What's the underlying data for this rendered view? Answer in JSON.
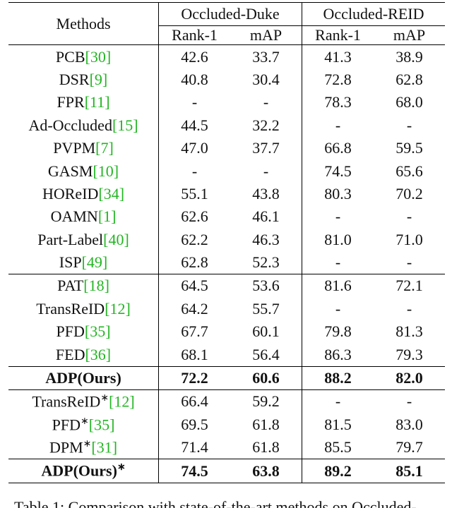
{
  "table": {
    "header": {
      "methods": "Methods",
      "datasets": [
        "Occluded-Duke",
        "Occluded-REID"
      ],
      "metrics": [
        "Rank-1",
        "mAP",
        "Rank-1",
        "mAP"
      ]
    },
    "groups": [
      {
        "bold": false,
        "rows": [
          {
            "method": "PCB",
            "ref": "[30]",
            "cells": [
              "42.6",
              "33.7",
              "41.3",
              "38.9"
            ]
          },
          {
            "method": "DSR",
            "ref": "[9]",
            "cells": [
              "40.8",
              "30.4",
              "72.8",
              "62.8"
            ]
          },
          {
            "method": "FPR",
            "ref": "[11]",
            "cells": [
              "-",
              "-",
              "78.3",
              "68.0"
            ]
          },
          {
            "method": "Ad-Occluded",
            "ref": "[15]",
            "cells": [
              "44.5",
              "32.2",
              "-",
              "-"
            ]
          },
          {
            "method": "PVPM",
            "ref": "[7]",
            "cells": [
              "47.0",
              "37.7",
              "66.8",
              "59.5"
            ]
          },
          {
            "method": "GASM",
            "ref": "[10]",
            "cells": [
              "-",
              "-",
              "74.5",
              "65.6"
            ]
          },
          {
            "method": "HOReID",
            "ref": "[34]",
            "cells": [
              "55.1",
              "43.8",
              "80.3",
              "70.2"
            ]
          },
          {
            "method": "OAMN",
            "ref": "[1]",
            "cells": [
              "62.6",
              "46.1",
              "-",
              "-"
            ]
          },
          {
            "method": "Part-Label",
            "ref": "[40]",
            "cells": [
              "62.2",
              "46.3",
              "81.0",
              "71.0"
            ]
          },
          {
            "method": "ISP",
            "ref": "[49]",
            "cells": [
              "62.8",
              "52.3",
              "-",
              "-"
            ]
          }
        ]
      },
      {
        "bold": false,
        "rows": [
          {
            "method": "PAT",
            "ref": "[18]",
            "cells": [
              "64.5",
              "53.6",
              "81.6",
              "72.1"
            ]
          },
          {
            "method": "TransReID",
            "ref": "[12]",
            "cells": [
              "64.2",
              "55.7",
              "-",
              "-"
            ]
          },
          {
            "method": "PFD",
            "ref": "[35]",
            "cells": [
              "67.7",
              "60.1",
              "79.8",
              "81.3"
            ]
          },
          {
            "method": "FED",
            "ref": "[36]",
            "cells": [
              "68.1",
              "56.4",
              "86.3",
              "79.3"
            ]
          }
        ]
      },
      {
        "bold": true,
        "rows": [
          {
            "method": "ADP(Ours)",
            "cells": [
              "72.2",
              "60.6",
              "88.2",
              "82.0"
            ]
          }
        ]
      },
      {
        "bold": false,
        "rows": [
          {
            "method": "TransReID",
            "mark": "∗",
            "ref": "[12]",
            "cells": [
              "66.4",
              "59.2",
              "-",
              "-"
            ]
          },
          {
            "method": "PFD",
            "mark": "∗",
            "ref": "[35]",
            "cells": [
              "69.5",
              "61.8",
              "81.5",
              "83.0"
            ]
          },
          {
            "method": "DPM",
            "mark": "∗",
            "ref": "[31]",
            "cells": [
              "71.4",
              "61.8",
              "85.5",
              "79.7"
            ]
          }
        ]
      },
      {
        "bold": true,
        "rows": [
          {
            "method": "ADP(Ours)",
            "mark": "∗",
            "cells": [
              "74.5",
              "63.8",
              "89.2",
              "85.1"
            ]
          }
        ]
      }
    ]
  },
  "caption": "Table 1: Comparison with state-of-the-art methods on Occluded-"
}
